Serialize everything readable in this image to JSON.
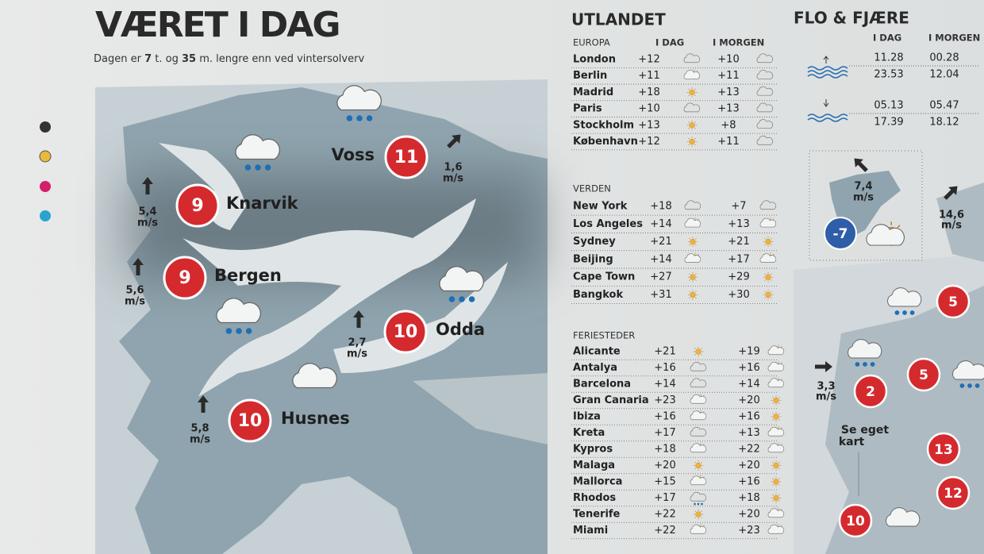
{
  "header": {
    "title": "VÆRET I DAG",
    "subtitle": [
      "Dagen er ",
      "7",
      " t. og ",
      "35",
      " m. lengre enn ved vintersolverv"
    ]
  },
  "map": {
    "cities": [
      {
        "name": "Voss",
        "temp": 11
      },
      {
        "name": "Knarvik",
        "temp": 9
      },
      {
        "name": "Bergen",
        "temp": 9
      },
      {
        "name": "Odda",
        "temp": 10
      },
      {
        "name": "Husnes",
        "temp": 10
      }
    ],
    "wind": [
      {
        "speed": "1,6",
        "unit": "m/s"
      },
      {
        "speed": "5,4",
        "unit": "m/s"
      },
      {
        "speed": "5,6",
        "unit": "m/s"
      },
      {
        "speed": "2,7",
        "unit": "m/s"
      },
      {
        "speed": "5,8",
        "unit": "m/s"
      }
    ]
  },
  "abroad": {
    "title": "UTLANDET",
    "today": "I DAG",
    "tomorrow": "I MORGEN",
    "sections": [
      {
        "label": "EUROPA",
        "rows": [
          [
            "London",
            "+12",
            "+10"
          ],
          [
            "Berlin",
            "+11",
            "+11"
          ],
          [
            "Madrid",
            "+18",
            "+13"
          ],
          [
            "Paris",
            "+10",
            "+13"
          ],
          [
            "Stockholm",
            "+13",
            "+8"
          ],
          [
            "København",
            "+12",
            "+11"
          ]
        ]
      },
      {
        "label": "VERDEN",
        "rows": [
          [
            "New York",
            "+18",
            "+7"
          ],
          [
            "Los Angeles",
            "+14",
            "+13"
          ],
          [
            "Sydney",
            "+21",
            "+21"
          ],
          [
            "Beijing",
            "+14",
            "+17"
          ],
          [
            "Cape Town",
            "+27",
            "+29"
          ],
          [
            "Bangkok",
            "+31",
            "+30"
          ]
        ]
      },
      {
        "label": "FERIESTEDER",
        "rows": [
          [
            "Alicante",
            "+21",
            "+19"
          ],
          [
            "Antalya",
            "+16",
            "+16"
          ],
          [
            "Barcelona",
            "+14",
            "+14"
          ],
          [
            "Gran Canaria",
            "+23",
            "+20"
          ],
          [
            "Ibiza",
            "+16",
            "+16"
          ],
          [
            "Kreta",
            "+17",
            "+13"
          ],
          [
            "Kypros",
            "+18",
            "+22"
          ],
          [
            "Malaga",
            "+20",
            "+20"
          ],
          [
            "Mallorca",
            "+15",
            "+16"
          ],
          [
            "Rhodos",
            "+17",
            "+18"
          ],
          [
            "Tenerife",
            "+22",
            "+20"
          ],
          [
            "Miami",
            "+22",
            "+23"
          ]
        ]
      }
    ]
  },
  "tide": {
    "title": "FLO & FJÆRE",
    "today": "I DAG",
    "tomorrow": "I MORGEN",
    "high": [
      [
        "11.28",
        "00.28"
      ],
      [
        "23.53",
        "12.04"
      ]
    ],
    "low": [
      [
        "05.13",
        "05.47"
      ],
      [
        "17.39",
        "18.12"
      ]
    ]
  },
  "east_map": {
    "svalbard": {
      "wind": {
        "speed": "7,4",
        "unit": "m/s"
      },
      "temp": -7
    },
    "winds": [
      {
        "speed": "14,6",
        "unit": "m/s"
      },
      {
        "speed": "3,3",
        "unit": "m/s"
      }
    ],
    "temps": [
      5,
      5,
      2,
      13,
      12,
      10
    ],
    "note": [
      "Se eget",
      "kart"
    ]
  }
}
